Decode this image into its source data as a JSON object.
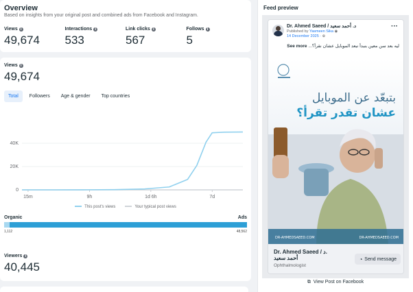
{
  "overview": {
    "title": "Overview",
    "subtitle": "Based on insights from your original post and combined ads from Facebook and Instagram.",
    "metrics": [
      {
        "label": "Views",
        "value": "49,674"
      },
      {
        "label": "Interactions",
        "value": "533"
      },
      {
        "label": "Link clicks",
        "value": "567"
      },
      {
        "label": "Follows",
        "value": "5"
      }
    ]
  },
  "views_section": {
    "label": "Views",
    "value": "49,674",
    "tabs": [
      "Total",
      "Followers",
      "Age & gender",
      "Top countries"
    ],
    "active_tab": "Total"
  },
  "chart_data": {
    "type": "line",
    "x_ticks": [
      "15m",
      "9h",
      "1d 6h",
      "7d"
    ],
    "y_ticks": [
      "0",
      "20K",
      "40K"
    ],
    "ylim": [
      0,
      50000
    ],
    "series": [
      {
        "name": "This post's views",
        "color": "#8fd0ee",
        "x": [
          0,
          0.5,
          1,
          1.5,
          2,
          2.4,
          2.7,
          2.85,
          3.0,
          3.1,
          3.3,
          3.6
        ],
        "values": [
          0,
          0,
          50,
          200,
          800,
          2500,
          9000,
          21000,
          41000,
          49000,
          49500,
          49674
        ]
      },
      {
        "name": "Your typical post views",
        "color": "#cfd3d8",
        "x": [
          0,
          3.6
        ],
        "values": [
          0,
          0
        ]
      }
    ]
  },
  "distribution": {
    "left_label": "Organic",
    "right_label": "Ads",
    "left_value": "1,112",
    "right_value": "48,562",
    "organic_fraction": 0.0224,
    "organic_color": "#a8d8f0",
    "ads_color": "#2d9fd6"
  },
  "viewers": {
    "label": "Viewers",
    "value": "40,445"
  },
  "preview": {
    "title": "Feed preview",
    "page_name": "Dr. Ahmed Saeed / د. أحمد سعيد",
    "published_by_prefix": "Published by",
    "publisher": "Yasmeen Sika",
    "date": "14 December 2025",
    "caption": "ليه بعد سن معين بنبدأ نبعد الموبايل عشان نقرأ؟...",
    "see_more": "See more",
    "image": {
      "headline_1": "بتبعّد عن الموبايل",
      "headline_2": "عشان تقدر تقرأ؟",
      "website": "DR-AHMEDSAEED.COM"
    },
    "footer_name_1": "Dr. Ahmed Saeed / د.",
    "footer_name_2": "أحمد سعيد",
    "footer_title": "Ophthalmologist",
    "send_button": "Send message",
    "view_on_fb": "View Post on Facebook"
  },
  "icons": [
    "info-icon",
    "more-dots-icon",
    "verified-icon",
    "globe-icon",
    "messenger-icon",
    "external-link-icon"
  ]
}
